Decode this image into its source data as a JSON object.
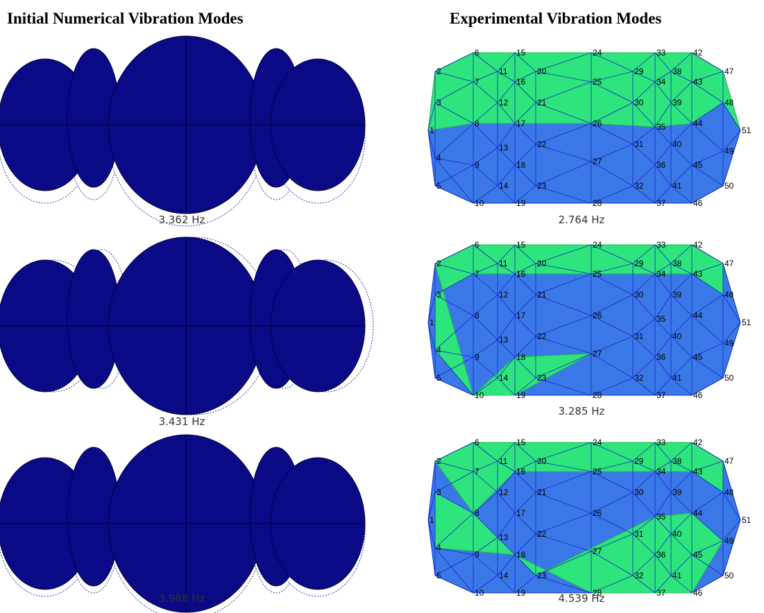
{
  "left_heading": "Initial Numerical Vibration Modes",
  "right_heading": "Experimental Vibration Modes",
  "numerical_modes": [
    {
      "frequency": "3.362 Hz"
    },
    {
      "frequency": "3.431 Hz"
    },
    {
      "frequency": "3.988 Hz"
    }
  ],
  "experimental_modes": [
    {
      "frequency": "2.764 Hz"
    },
    {
      "frequency": "3.285 Hz"
    },
    {
      "frequency": "4.539 Hz"
    }
  ],
  "node_labels": [
    "1",
    "2",
    "3",
    "4",
    "5",
    "6",
    "7",
    "8",
    "9",
    "10",
    "11",
    "12",
    "13",
    "14",
    "15",
    "16",
    "17",
    "18",
    "19",
    "20",
    "21",
    "22",
    "23",
    "24",
    "25",
    "26",
    "27",
    "28",
    "29",
    "30",
    "31",
    "32",
    "33",
    "34",
    "35",
    "36",
    "37",
    "38",
    "39",
    "40",
    "41",
    "42",
    "43",
    "44",
    "45",
    "46",
    "47",
    "48",
    "49",
    "50",
    "51"
  ]
}
